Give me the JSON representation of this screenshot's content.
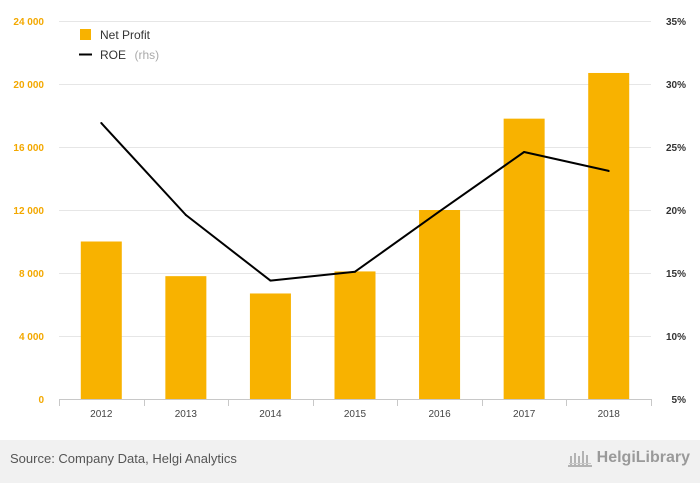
{
  "chart_data": {
    "type": "bar+line",
    "categories": [
      "2012",
      "2013",
      "2014",
      "2015",
      "2016",
      "2017",
      "2018"
    ],
    "series": [
      {
        "name": "Net Profit",
        "type": "bar",
        "axis": "left",
        "color": "#f8b200",
        "values": [
          10000,
          7800,
          6700,
          8100,
          12000,
          17800,
          20700
        ]
      },
      {
        "name": "ROE",
        "name_suffix": "(rhs)",
        "type": "line",
        "axis": "right",
        "color": "#000000",
        "values": [
          26.9,
          19.6,
          14.4,
          15.1,
          19.9,
          24.6,
          23.1
        ]
      }
    ],
    "left_axis": {
      "ylim": [
        0,
        24000
      ],
      "ticks": [
        0,
        4000,
        8000,
        12000,
        16000,
        20000,
        24000
      ],
      "tick_labels": [
        "0",
        "4 000",
        "8 000",
        "12 000",
        "16 000",
        "20 000",
        "24 000"
      ],
      "color": "#f3a800"
    },
    "right_axis": {
      "ylim": [
        5,
        35
      ],
      "ticks": [
        5,
        10,
        15,
        20,
        25,
        30,
        35
      ],
      "tick_labels": [
        "5%",
        "10%",
        "15%",
        "20%",
        "25%",
        "30%",
        "35%"
      ]
    },
    "grid": true,
    "legend_position": "top-left"
  },
  "footer": {
    "source": "Source: Company Data, Helgi Analytics",
    "brand": "HelgiLibrary"
  }
}
